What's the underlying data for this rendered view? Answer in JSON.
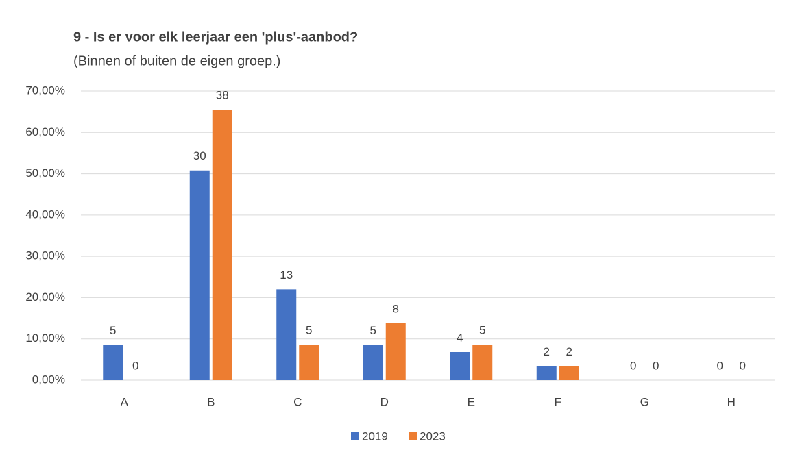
{
  "chart_data": {
    "type": "bar",
    "title": "9 - Is er voor elk leerjaar een 'plus'-aanbod?",
    "subtitle": "(Binnen of buiten de eigen groep.)",
    "categories": [
      "A",
      "B",
      "C",
      "D",
      "E",
      "F",
      "G",
      "H"
    ],
    "series": [
      {
        "name": "2019",
        "color": "#4472c4",
        "values": [
          8.5,
          50.8,
          22,
          8.5,
          6.8,
          3.4,
          0,
          0
        ],
        "counts": [
          5,
          30,
          13,
          5,
          4,
          2,
          0,
          0
        ]
      },
      {
        "name": "2023",
        "color": "#ed7d31",
        "values": [
          0,
          65.5,
          8.6,
          13.8,
          8.6,
          3.4,
          0,
          0
        ],
        "counts": [
          0,
          38,
          5,
          8,
          5,
          2,
          0,
          0
        ]
      }
    ],
    "ylim": [
      0,
      70
    ],
    "yticks": [
      {
        "value": 0,
        "label": "0,00%"
      },
      {
        "value": 10,
        "label": "10,00%"
      },
      {
        "value": 20,
        "label": "20,00%"
      },
      {
        "value": 30,
        "label": "30,00%"
      },
      {
        "value": 40,
        "label": "40,00%"
      },
      {
        "value": 50,
        "label": "50,00%"
      },
      {
        "value": 60,
        "label": "60,00%"
      },
      {
        "value": 70,
        "label": "70,00%"
      }
    ],
    "grid": true,
    "legend": "bottom"
  }
}
